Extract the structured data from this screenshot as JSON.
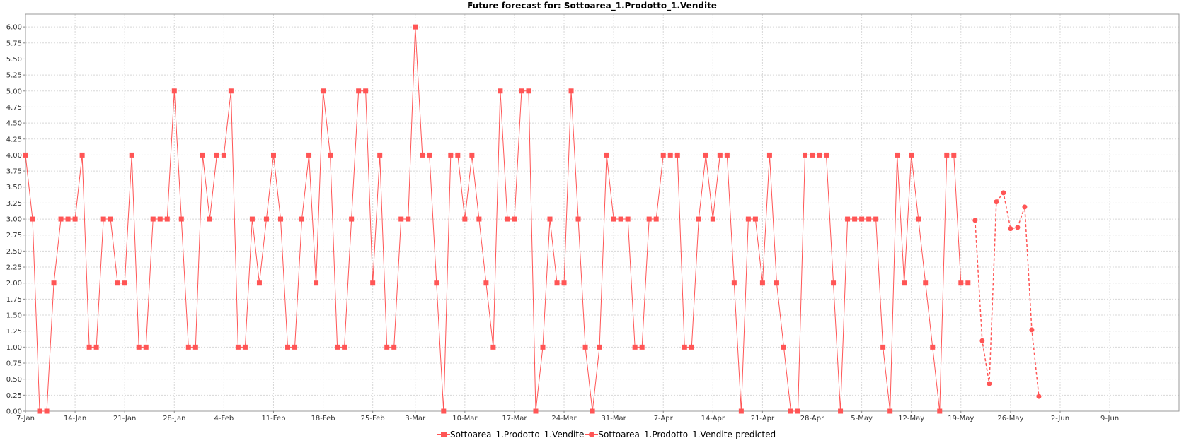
{
  "chart_data": {
    "type": "line",
    "title": "Future forecast for: Sottoarea_1.Prodotto_1.Vendite",
    "xlabel": "",
    "ylabel": "",
    "x_start": "7-Jan",
    "x_tick_labels": [
      "7-Jan",
      "14-Jan",
      "21-Jan",
      "28-Jan",
      "4-Feb",
      "11-Feb",
      "18-Feb",
      "25-Feb",
      "3-Mar",
      "10-Mar",
      "17-Mar",
      "24-Mar",
      "31-Mar",
      "7-Apr",
      "14-Apr",
      "21-Apr",
      "28-Apr",
      "5-May",
      "12-May",
      "19-May",
      "26-May",
      "2-Jun",
      "9-Jun"
    ],
    "y_tick_labels": [
      "0.00",
      "0.25",
      "0.50",
      "0.75",
      "1.00",
      "1.25",
      "1.50",
      "1.75",
      "2.00",
      "2.25",
      "2.50",
      "2.75",
      "3.00",
      "3.25",
      "3.50",
      "3.75",
      "4.00",
      "4.25",
      "4.50",
      "4.75",
      "5.00",
      "5.25",
      "5.50",
      "5.75",
      "6.00"
    ],
    "ylim": [
      0,
      6.2
    ],
    "grid": true,
    "legend_position": "bottom-center",
    "colors": {
      "series": "#ff5555",
      "grid": "#d8d8d8",
      "axis": "#888888"
    },
    "series": [
      {
        "name": "Sottoarea_1.Prodotto_1.Vendite",
        "marker": "square",
        "line_style": "solid",
        "x_start": "7-Jan",
        "values": [
          4,
          3,
          0,
          0,
          2,
          3,
          3,
          3,
          4,
          1,
          1,
          3,
          3,
          2,
          2,
          4,
          1,
          1,
          3,
          3,
          3,
          5,
          3,
          1,
          1,
          4,
          3,
          4,
          4,
          5,
          1,
          1,
          3,
          2,
          3,
          4,
          3,
          1,
          1,
          3,
          4,
          2,
          5,
          4,
          1,
          1,
          3,
          5,
          5,
          2,
          4,
          1,
          1,
          3,
          3,
          6,
          4,
          4,
          2,
          0,
          4,
          4,
          3,
          4,
          3,
          2,
          1,
          5,
          3,
          3,
          5,
          5,
          0,
          1,
          3,
          2,
          2,
          5,
          3,
          1,
          0,
          1,
          4,
          3,
          3,
          3,
          1,
          1,
          3,
          3,
          4,
          4,
          4,
          1,
          1,
          3,
          4,
          3,
          4,
          4,
          2,
          0,
          3,
          3,
          2,
          4,
          2,
          1,
          0,
          0,
          4,
          4,
          4,
          4,
          2,
          0,
          3,
          3,
          3,
          3,
          3,
          1,
          0,
          4,
          2,
          4,
          3,
          2,
          1,
          0,
          4,
          4,
          2,
          2
        ]
      },
      {
        "name": "Sottoarea_1.Prodotto_1.Vendite-predicted",
        "marker": "circle",
        "line_style": "dashed",
        "x_start": "21-May",
        "values": [
          2.98,
          1.1,
          0.43,
          3.27,
          3.41,
          2.85,
          2.87,
          3.19,
          1.27,
          0.23
        ]
      }
    ]
  }
}
